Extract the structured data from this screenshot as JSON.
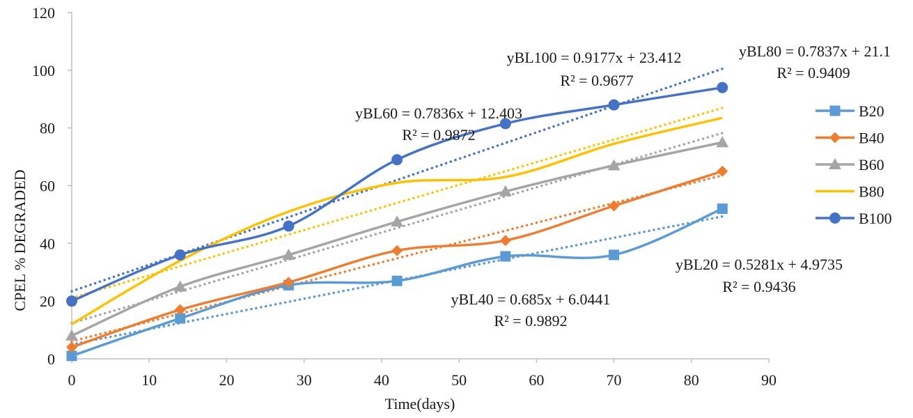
{
  "chart_data": {
    "type": "line",
    "title": "",
    "xlabel": "Time(days)",
    "ylabel": "CPEL % DEGRADED",
    "xlim": [
      0,
      90
    ],
    "ylim": [
      0,
      120
    ],
    "xticks": [
      0,
      10,
      20,
      30,
      40,
      50,
      60,
      70,
      80,
      90
    ],
    "yticks": [
      0,
      20,
      40,
      60,
      80,
      100,
      120
    ],
    "grid": false,
    "legend_position": "right",
    "x": [
      0,
      14,
      28,
      42,
      56,
      70,
      84
    ],
    "series": [
      {
        "name": "B20",
        "marker": "square",
        "color": "#5B9BD5",
        "values": [
          1,
          14,
          25.5,
          27,
          35.5,
          36,
          52
        ],
        "trend": {
          "slope": 0.5281,
          "intercept": 4.9735
        },
        "equation": "yBL20 = 0.5281x + 4.9735",
        "r2": "R² = 0.9436"
      },
      {
        "name": "B40",
        "marker": "diamond",
        "color": "#ED7D31",
        "values": [
          4,
          17,
          26.5,
          37.5,
          41,
          53,
          65
        ],
        "trend": {
          "slope": 0.685,
          "intercept": 6.0441
        },
        "equation": "yBL40 = 0.685x + 6.0441",
        "r2": "R² = 0.9892"
      },
      {
        "name": "B60",
        "marker": "triangle",
        "color": "#A5A5A5",
        "values": [
          8,
          25,
          36,
          47.5,
          58,
          67,
          75
        ],
        "trend": {
          "slope": 0.7836,
          "intercept": 12.403
        },
        "equation": "yBL60 = 0.7836x + 12.403",
        "r2": "R² = 0.9872"
      },
      {
        "name": "B80",
        "marker": "none",
        "color": "#FFC000",
        "values": [
          12,
          34,
          51,
          61,
          63,
          74.5,
          83.5
        ],
        "trend": {
          "slope": 0.7837,
          "intercept": 21.1
        },
        "equation": "yBL80 = 0.7837x + 21.1",
        "r2": "R² = 0.9409"
      },
      {
        "name": "B100",
        "marker": "circle",
        "color": "#4472C4",
        "values": [
          20,
          36,
          46,
          69,
          81.5,
          88,
          94
        ],
        "trend": {
          "slope": 0.9177,
          "intercept": 23.412
        },
        "equation": "yBL100 = 0.9177x + 23.412",
        "r2": "R² = 0.9677"
      }
    ]
  }
}
